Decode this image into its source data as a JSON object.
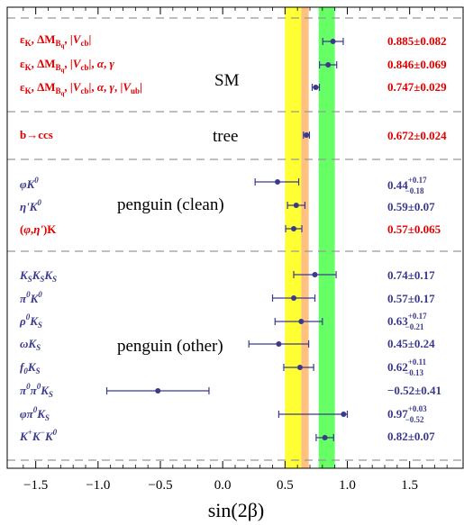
{
  "chart_data": {
    "type": "scatter",
    "title": "",
    "xlabel": "sin(2β)",
    "ylabel": "",
    "xlim": [
      -1.7,
      1.9
    ],
    "x_ticks": [
      "−1.5",
      "−1.0",
      "−0.5",
      "0.0",
      "0.5",
      "1.0",
      "1.5"
    ],
    "x_tick_values": [
      -1.5,
      -1.0,
      -0.5,
      0.0,
      0.5,
      1.0,
      1.5
    ],
    "grid": false,
    "bands": [
      {
        "color": "#ffff33",
        "range": [
          0.5,
          0.63
        ]
      },
      {
        "color": "#ffc080",
        "range": [
          0.63,
          0.69
        ]
      },
      {
        "color": "#66ff66",
        "range": [
          0.77,
          0.9
        ]
      }
    ],
    "groups": [
      {
        "name": "SM",
        "separator_after": true
      },
      {
        "name": "tree",
        "separator_after": true
      },
      {
        "name": "penguin (clean)",
        "separator_after": true
      },
      {
        "name": "penguin (other)",
        "separator_after": true
      }
    ],
    "points": [
      {
        "label": "ε_K, ΔM_Bq, |V_cb|",
        "value": 0.885,
        "err_minus": 0.082,
        "err_plus": 0.082,
        "value_text": "0.885±0.082",
        "color": "#e00000"
      },
      {
        "label": "ε_K, ΔM_Bq, |V_cb|, α, γ",
        "value": 0.846,
        "err_minus": 0.069,
        "err_plus": 0.069,
        "value_text": "0.846±0.069",
        "color": "#e00000"
      },
      {
        "label": "ε_K, ΔM_Bq, |V_cb|, α, γ, |V_ub|",
        "value": 0.747,
        "err_minus": 0.029,
        "err_plus": 0.029,
        "value_text": "0.747±0.029",
        "color": "#e00000"
      },
      {
        "label": "b→ccs",
        "value": 0.672,
        "err_minus": 0.024,
        "err_plus": 0.024,
        "value_text": "0.672±0.024",
        "color": "#e00000"
      },
      {
        "label": "φK0",
        "value": 0.44,
        "err_minus": 0.18,
        "err_plus": 0.17,
        "value_text": "0.44+0.17−0.18",
        "color": "#3a3a8c"
      },
      {
        "label": "η'K0",
        "value": 0.59,
        "err_minus": 0.07,
        "err_plus": 0.07,
        "value_text": "0.59±0.07",
        "color": "#3a3a8c"
      },
      {
        "label": "(φ,η')K",
        "value": 0.57,
        "err_minus": 0.065,
        "err_plus": 0.065,
        "value_text": "0.57±0.065",
        "color": "#e00000"
      },
      {
        "label": "KsKsKs",
        "value": 0.74,
        "err_minus": 0.17,
        "err_plus": 0.17,
        "value_text": "0.74±0.17",
        "color": "#3a3a8c"
      },
      {
        "label": "π0K0",
        "value": 0.57,
        "err_minus": 0.17,
        "err_plus": 0.17,
        "value_text": "0.57±0.17",
        "color": "#3a3a8c"
      },
      {
        "label": "ρ0Ks",
        "value": 0.63,
        "err_minus": 0.21,
        "err_plus": 0.17,
        "value_text": "0.63+0.17−0.21",
        "color": "#3a3a8c"
      },
      {
        "label": "ωKs",
        "value": 0.45,
        "err_minus": 0.24,
        "err_plus": 0.24,
        "value_text": "0.45±0.24",
        "color": "#3a3a8c"
      },
      {
        "label": "f0Ks",
        "value": 0.62,
        "err_minus": 0.13,
        "err_plus": 0.11,
        "value_text": "0.62+0.11−0.13",
        "color": "#3a3a8c"
      },
      {
        "label": "π0π0Ks",
        "value": -0.52,
        "err_minus": 0.41,
        "err_plus": 0.41,
        "value_text": "−0.52±0.41",
        "color": "#3a3a8c"
      },
      {
        "label": "φπ0Ks",
        "value": 0.97,
        "err_minus": 0.52,
        "err_plus": 0.03,
        "value_text": "0.97+0.03−0.52",
        "color": "#3a3a8c"
      },
      {
        "label": "K+K−K0",
        "value": 0.82,
        "err_minus": 0.07,
        "err_plus": 0.07,
        "value_text": "0.82±0.07",
        "color": "#3a3a8c"
      }
    ]
  }
}
